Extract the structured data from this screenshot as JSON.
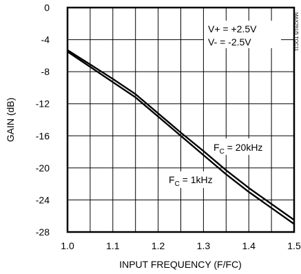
{
  "chart_data": {
    "type": "line",
    "title": "",
    "xlabel": "INPUT FREQUENCY (F/FC)",
    "ylabel": "GAIN (dB)",
    "xlim": [
      1.0,
      1.5
    ],
    "ylim": [
      -28,
      0
    ],
    "xticks": [
      1.0,
      1.1,
      1.2,
      1.3,
      1.4,
      1.5
    ],
    "xtick_labels": [
      "1.0",
      "1.1",
      "1.2",
      "1.3",
      "1.4",
      "1.5"
    ],
    "yticks": [
      0,
      -4,
      -8,
      -12,
      -16,
      -20,
      -24,
      -28
    ],
    "ytick_labels": [
      "0",
      "-4",
      "-8",
      "-12",
      "-16",
      "-20",
      "-24",
      "-28"
    ],
    "grid": true,
    "legend": "none",
    "series": [
      {
        "name": "FC = 1kHz",
        "x": [
          1.0,
          1.05,
          1.1,
          1.15,
          1.2,
          1.25,
          1.3,
          1.35,
          1.4,
          1.45,
          1.5
        ],
        "y": [
          -5.5,
          -7.4,
          -9.3,
          -11.2,
          -13.6,
          -16.0,
          -18.4,
          -20.8,
          -23.0,
          -25.0,
          -27.0
        ]
      },
      {
        "name": "FC = 20kHz",
        "x": [
          1.0,
          1.05,
          1.1,
          1.15,
          1.2,
          1.25,
          1.3,
          1.35,
          1.4,
          1.45,
          1.5
        ],
        "y": [
          -5.3,
          -7.1,
          -8.9,
          -10.8,
          -13.2,
          -15.6,
          -17.9,
          -20.3,
          -22.5,
          -24.5,
          -26.5
        ]
      }
    ],
    "annotations": {
      "vplus": "V+ = +2.5V",
      "vminus": "V- = -2.5V",
      "fc_high_prefix": "F",
      "fc_high_sub": "C",
      "fc_high_value": " = 20kHz",
      "fc_low_prefix": "F",
      "fc_low_sub": "C",
      "fc_low_value": " = 1kHz"
    },
    "corner_tag": "MAX291/5 TOC11"
  },
  "colors": {
    "line": "#000000",
    "grid": "#000000",
    "background": "#ffffff"
  }
}
